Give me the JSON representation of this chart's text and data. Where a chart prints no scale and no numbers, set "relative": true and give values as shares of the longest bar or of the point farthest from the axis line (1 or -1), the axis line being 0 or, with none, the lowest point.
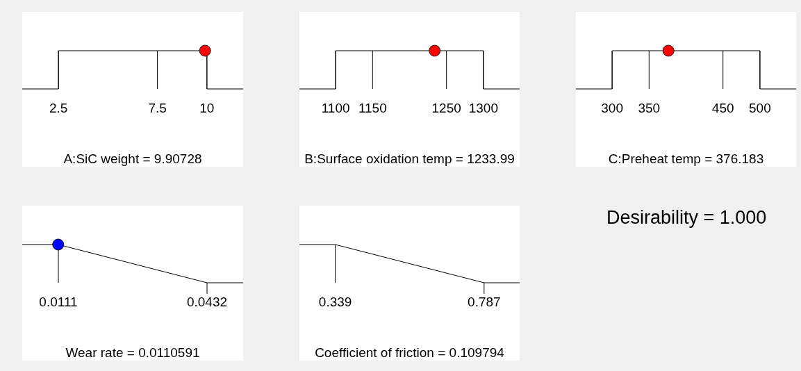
{
  "chart_data": [
    {
      "type": "line",
      "relative": true,
      "grid": "x",
      "xlabel": "A:SiC weight = 9.90728",
      "xlim": [
        0.67,
        11.83
      ],
      "xticks": [
        2.5,
        7.5,
        10
      ],
      "series": [
        {
          "type": "line",
          "color": "#000000",
          "x": [
            0.67,
            2.5,
            2.5,
            10,
            10,
            11.83
          ],
          "values": [
            0,
            0,
            1,
            1,
            0,
            0
          ]
        },
        {
          "type": "scatter",
          "marker": "circle",
          "color": "#ff0000",
          "x": [
            9.90728
          ],
          "values": [
            1
          ]
        }
      ]
    },
    {
      "type": "line",
      "relative": true,
      "grid": "x",
      "xlabel": "B:Surface oxidation temp = 1233.99",
      "xlim": [
        1051,
        1349
      ],
      "xticks": [
        1100,
        1150,
        1250,
        1300
      ],
      "series": [
        {
          "type": "line",
          "color": "#000000",
          "x": [
            1051,
            1100,
            1100,
            1300,
            1300,
            1349
          ],
          "values": [
            0,
            0,
            1,
            1,
            0,
            0
          ]
        },
        {
          "type": "scatter",
          "marker": "circle",
          "color": "#ff0000",
          "x": [
            1233.99
          ],
          "values": [
            1
          ]
        }
      ]
    },
    {
      "type": "line",
      "relative": true,
      "grid": "x",
      "xlabel": "C:Preheat temp = 376.183",
      "xlim": [
        251,
        549
      ],
      "xticks": [
        300,
        350,
        450,
        500
      ],
      "series": [
        {
          "type": "line",
          "color": "#000000",
          "x": [
            251,
            300,
            300,
            500,
            500,
            549
          ],
          "values": [
            0,
            0,
            1,
            1,
            0,
            0
          ]
        },
        {
          "type": "scatter",
          "marker": "circle",
          "color": "#ff0000",
          "x": [
            376.183
          ],
          "values": [
            1
          ]
        }
      ]
    },
    {
      "type": "line",
      "relative": true,
      "grid": "x",
      "xlabel": "Wear rate = 0.0110591",
      "xlim": [
        0.0033,
        0.051
      ],
      "xticks": [
        0.0111,
        0.0432
      ],
      "series": [
        {
          "type": "line",
          "color": "#000000",
          "x": [
            0.0033,
            0.0111,
            0.0432,
            0.051
          ],
          "values": [
            1,
            1,
            0,
            0
          ]
        },
        {
          "type": "scatter",
          "marker": "circle",
          "color": "#0000ff",
          "x": [
            0.0110591
          ],
          "values": [
            1
          ]
        }
      ]
    },
    {
      "type": "line",
      "relative": true,
      "grid": "x",
      "xlabel": "Coefficient of friction = 0.109794",
      "xlim": [
        0.231,
        0.894
      ],
      "xticks": [
        0.339,
        0.787
      ],
      "series": [
        {
          "type": "line",
          "color": "#000000",
          "x": [
            0.231,
            0.339,
            0.787,
            0.894
          ],
          "values": [
            1,
            1,
            0,
            0
          ]
        }
      ]
    },
    {
      "type": "other",
      "title": "Desirability = 1.000"
    }
  ]
}
